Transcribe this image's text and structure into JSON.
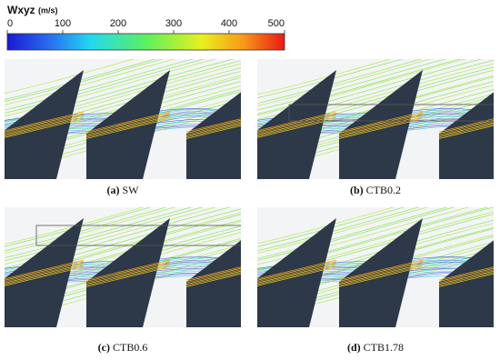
{
  "colorbar": {
    "title": "Wxyz",
    "unit": "(m/s)",
    "lim": [
      0,
      500
    ],
    "ticks": [
      0,
      100,
      200,
      300,
      400,
      500
    ]
  },
  "panels": [
    {
      "label": "(a)",
      "name": "SW"
    },
    {
      "label": "(b)",
      "name": "CTB0.2"
    },
    {
      "label": "(c)",
      "name": "CTB0.6"
    },
    {
      "label": "(d)",
      "name": "CTB1.78"
    }
  ]
}
